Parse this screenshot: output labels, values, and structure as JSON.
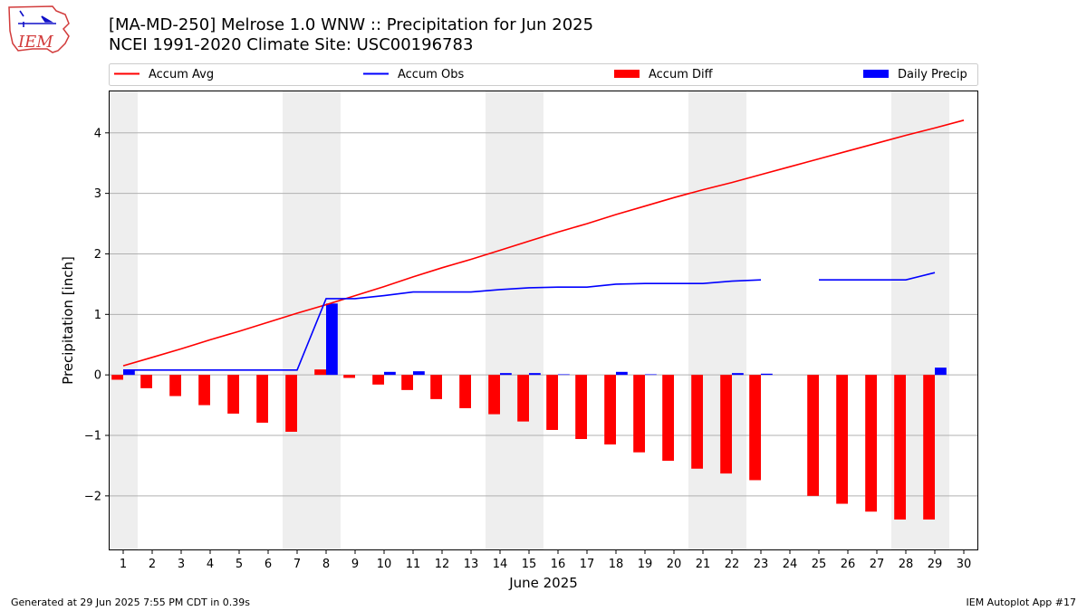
{
  "header": {
    "title_line1": "[MA-MD-250] Melrose 1.0 WNW :: Precipitation for Jun 2025",
    "title_line2": "NCEI 1991-2020 Climate Site: USC00196783"
  },
  "logo": {
    "text": "IEM",
    "icon": "iem-state-logo"
  },
  "footer": {
    "left": "Generated at 29 Jun 2025 7:55 PM CDT in 0.39s",
    "right": "IEM Autoplot App #17"
  },
  "colors": {
    "accum_avg": "#ff0000",
    "accum_obs": "#0000ff",
    "accum_diff": "#ff0000",
    "daily_precip": "#0000ff",
    "weekend_shade": "#eeeeee",
    "grid": "#b0b0b0"
  },
  "chart_data": {
    "type": "bar",
    "xlabel": "June 2025",
    "ylabel": "Precipitation [inch]",
    "ylim": [
      -2.9,
      4.7
    ],
    "yticks": [
      -2,
      -1,
      0,
      1,
      2,
      3,
      4
    ],
    "ytick_labels": [
      "−2",
      "−1",
      "0",
      "1",
      "2",
      "3",
      "4"
    ],
    "grid": "horizontal",
    "legend_position": "top",
    "x": [
      1,
      2,
      3,
      4,
      5,
      6,
      7,
      8,
      9,
      10,
      11,
      12,
      13,
      14,
      15,
      16,
      17,
      18,
      19,
      20,
      21,
      22,
      23,
      24,
      25,
      26,
      27,
      28,
      29,
      30
    ],
    "weekend_days": [
      1,
      7,
      8,
      14,
      15,
      21,
      22,
      28,
      29
    ],
    "series": [
      {
        "name": "Accum Avg",
        "kind": "line",
        "values": [
          0.15,
          0.29,
          0.43,
          0.58,
          0.72,
          0.87,
          1.02,
          1.16,
          1.31,
          1.46,
          1.62,
          1.77,
          1.91,
          2.06,
          2.21,
          2.36,
          2.5,
          2.65,
          2.79,
          2.93,
          3.06,
          3.18,
          3.31,
          3.44,
          3.57,
          3.7,
          3.83,
          3.96,
          4.08,
          4.21
        ]
      },
      {
        "name": "Accum Obs",
        "kind": "line",
        "values": [
          0.08,
          0.08,
          0.08,
          0.08,
          0.08,
          0.08,
          0.08,
          1.26,
          1.26,
          1.31,
          1.37,
          1.37,
          1.37,
          1.41,
          1.44,
          1.45,
          1.45,
          1.5,
          1.51,
          1.51,
          1.51,
          1.55,
          1.57,
          null,
          1.57,
          1.57,
          1.57,
          1.57,
          1.69,
          null
        ]
      },
      {
        "name": "Accum Diff",
        "kind": "bar",
        "values": [
          -0.08,
          -0.22,
          -0.35,
          -0.5,
          -0.64,
          -0.79,
          -0.94,
          0.09,
          -0.05,
          -0.16,
          -0.25,
          -0.4,
          -0.55,
          -0.65,
          -0.77,
          -0.91,
          -1.06,
          -1.15,
          -1.28,
          -1.42,
          -1.55,
          -1.63,
          -1.74,
          null,
          -2.0,
          -2.13,
          -2.26,
          -2.39,
          -2.39,
          null
        ]
      },
      {
        "name": "Daily Precip",
        "kind": "bar",
        "values": [
          0.08,
          0.0,
          0.0,
          0.0,
          0.0,
          0.0,
          0.0,
          1.18,
          0.0,
          0.05,
          0.06,
          0.0,
          0.0,
          0.03,
          0.03,
          0.01,
          0.0,
          0.05,
          0.01,
          0.0,
          0.0,
          0.03,
          0.02,
          null,
          0.0,
          0.0,
          0.0,
          0.0,
          0.12,
          null
        ]
      }
    ]
  }
}
